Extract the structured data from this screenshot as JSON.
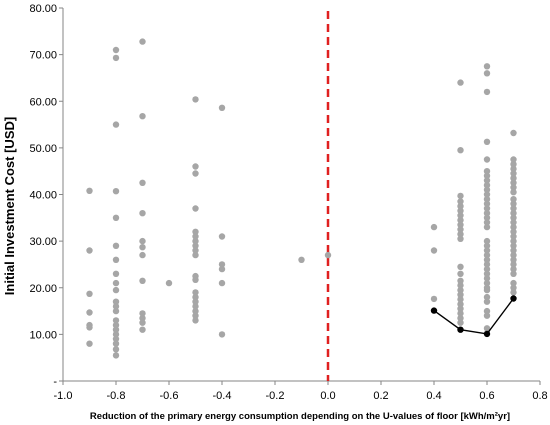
{
  "chart_data": {
    "type": "scatter",
    "title": "",
    "xlabel": "Reduction of the primary energy consumption depending on the U-values of floor [kWh/m²yr]",
    "ylabel": "Initial Investment Cost [USD]",
    "xlim": [
      -1.0,
      0.8
    ],
    "ylim": [
      0,
      80
    ],
    "x_ticks": [
      "-1.0",
      "-0.8",
      "-0.6",
      "-0.4",
      "-0.2",
      "0.0",
      "0.2",
      "0.4",
      "0.6",
      "0.8"
    ],
    "y_ticks": [
      "-",
      "10.00",
      "20.00",
      "30.00",
      "40.00",
      "50.00",
      "60.00",
      "70.00",
      "80.00"
    ],
    "grid": false,
    "legend": "none",
    "reference_line": {
      "x": 0.0,
      "color": "#e02020",
      "style": "dashed"
    },
    "series": [
      {
        "color": "#a6a6a6",
        "mode": "markers",
        "points": [
          [
            -0.9,
            40.8
          ],
          [
            -0.9,
            28.0
          ],
          [
            -0.9,
            18.7
          ],
          [
            -0.9,
            14.7
          ],
          [
            -0.9,
            12.0
          ],
          [
            -0.9,
            11.5
          ],
          [
            -0.9,
            8.0
          ],
          [
            -0.8,
            71.0
          ],
          [
            -0.8,
            69.3
          ],
          [
            -0.8,
            55.0
          ],
          [
            -0.8,
            40.7
          ],
          [
            -0.8,
            35.0
          ],
          [
            -0.8,
            29.0
          ],
          [
            -0.8,
            26.0
          ],
          [
            -0.8,
            23.0
          ],
          [
            -0.8,
            21.0
          ],
          [
            -0.8,
            19.5
          ],
          [
            -0.8,
            17.0
          ],
          [
            -0.8,
            16.0
          ],
          [
            -0.8,
            15.0
          ],
          [
            -0.8,
            13.0
          ],
          [
            -0.8,
            12.0
          ],
          [
            -0.8,
            11.0
          ],
          [
            -0.8,
            10.0
          ],
          [
            -0.8,
            9.0
          ],
          [
            -0.8,
            8.0
          ],
          [
            -0.8,
            6.8
          ],
          [
            -0.8,
            5.5
          ],
          [
            -0.7,
            72.8
          ],
          [
            -0.7,
            56.8
          ],
          [
            -0.7,
            42.5
          ],
          [
            -0.7,
            36.0
          ],
          [
            -0.7,
            30.0
          ],
          [
            -0.7,
            28.7
          ],
          [
            -0.7,
            27.0
          ],
          [
            -0.7,
            21.5
          ],
          [
            -0.7,
            14.5
          ],
          [
            -0.7,
            13.5
          ],
          [
            -0.7,
            12.5
          ],
          [
            -0.7,
            11.0
          ],
          [
            -0.6,
            21.0
          ],
          [
            -0.5,
            60.4
          ],
          [
            -0.5,
            46.0
          ],
          [
            -0.5,
            44.5
          ],
          [
            -0.5,
            37.0
          ],
          [
            -0.5,
            32.0
          ],
          [
            -0.5,
            31.0
          ],
          [
            -0.5,
            30.0
          ],
          [
            -0.5,
            29.0
          ],
          [
            -0.5,
            28.0
          ],
          [
            -0.5,
            27.0
          ],
          [
            -0.5,
            22.5
          ],
          [
            -0.5,
            21.7
          ],
          [
            -0.5,
            19.0
          ],
          [
            -0.5,
            18.0
          ],
          [
            -0.5,
            17.0
          ],
          [
            -0.5,
            16.0
          ],
          [
            -0.5,
            15.0
          ],
          [
            -0.5,
            14.0
          ],
          [
            -0.5,
            13.0
          ],
          [
            -0.4,
            58.6
          ],
          [
            -0.4,
            31.0
          ],
          [
            -0.4,
            25.0
          ],
          [
            -0.4,
            24.0
          ],
          [
            -0.4,
            21.0
          ],
          [
            -0.4,
            10.0
          ],
          [
            -0.1,
            26.0
          ],
          [
            0.0,
            27.0
          ],
          [
            0.4,
            33.0
          ],
          [
            0.4,
            28.0
          ],
          [
            0.4,
            17.6
          ],
          [
            0.5,
            64.0
          ],
          [
            0.5,
            49.5
          ],
          [
            0.5,
            39.7
          ],
          [
            0.5,
            38.5
          ],
          [
            0.5,
            37.5
          ],
          [
            0.5,
            36.5
          ],
          [
            0.5,
            35.5
          ],
          [
            0.5,
            34.5
          ],
          [
            0.5,
            33.5
          ],
          [
            0.5,
            32.5
          ],
          [
            0.5,
            31.5
          ],
          [
            0.5,
            30.5
          ],
          [
            0.5,
            24.5
          ],
          [
            0.5,
            23.0
          ],
          [
            0.5,
            21.5
          ],
          [
            0.5,
            20.5
          ],
          [
            0.5,
            19.5
          ],
          [
            0.5,
            18.5
          ],
          [
            0.5,
            17.5
          ],
          [
            0.5,
            16.5
          ],
          [
            0.5,
            15.5
          ],
          [
            0.5,
            14.5
          ],
          [
            0.5,
            13.5
          ],
          [
            0.5,
            12.5
          ],
          [
            0.6,
            67.5
          ],
          [
            0.6,
            66.0
          ],
          [
            0.6,
            62.0
          ],
          [
            0.6,
            51.3
          ],
          [
            0.6,
            47.5
          ],
          [
            0.6,
            45.0
          ],
          [
            0.6,
            44.0
          ],
          [
            0.6,
            43.0
          ],
          [
            0.6,
            42.0
          ],
          [
            0.6,
            41.0
          ],
          [
            0.6,
            40.0
          ],
          [
            0.6,
            39.0
          ],
          [
            0.6,
            38.0
          ],
          [
            0.6,
            37.0
          ],
          [
            0.6,
            36.0
          ],
          [
            0.6,
            35.0
          ],
          [
            0.6,
            34.0
          ],
          [
            0.6,
            33.0
          ],
          [
            0.6,
            30.0
          ],
          [
            0.6,
            29.0
          ],
          [
            0.6,
            28.0
          ],
          [
            0.6,
            27.0
          ],
          [
            0.6,
            26.0
          ],
          [
            0.6,
            25.0
          ],
          [
            0.6,
            24.0
          ],
          [
            0.6,
            23.0
          ],
          [
            0.6,
            22.0
          ],
          [
            0.6,
            21.0
          ],
          [
            0.6,
            20.0
          ],
          [
            0.6,
            19.5
          ],
          [
            0.6,
            18.0
          ],
          [
            0.6,
            17.0
          ],
          [
            0.6,
            15.0
          ],
          [
            0.6,
            14.0
          ],
          [
            0.6,
            11.3
          ],
          [
            0.7,
            53.2
          ],
          [
            0.7,
            47.5
          ],
          [
            0.7,
            46.5
          ],
          [
            0.7,
            45.5
          ],
          [
            0.7,
            44.5
          ],
          [
            0.7,
            43.5
          ],
          [
            0.7,
            42.5
          ],
          [
            0.7,
            41.5
          ],
          [
            0.7,
            40.5
          ],
          [
            0.7,
            39.0
          ],
          [
            0.7,
            38.0
          ],
          [
            0.7,
            37.0
          ],
          [
            0.7,
            36.0
          ],
          [
            0.7,
            35.0
          ],
          [
            0.7,
            34.0
          ],
          [
            0.7,
            33.0
          ],
          [
            0.7,
            32.0
          ],
          [
            0.7,
            31.0
          ],
          [
            0.7,
            30.0
          ],
          [
            0.7,
            29.0
          ],
          [
            0.7,
            28.0
          ],
          [
            0.7,
            27.0
          ],
          [
            0.7,
            26.0
          ],
          [
            0.7,
            25.0
          ],
          [
            0.7,
            24.0
          ],
          [
            0.7,
            23.0
          ],
          [
            0.7,
            21.0
          ],
          [
            0.7,
            20.0
          ],
          [
            0.7,
            19.0
          ]
        ]
      },
      {
        "color": "#000000",
        "mode": "lines+markers",
        "points": [
          [
            0.4,
            15.1
          ],
          [
            0.5,
            11.0
          ],
          [
            0.6,
            10.1
          ],
          [
            0.7,
            17.7
          ]
        ]
      }
    ]
  }
}
